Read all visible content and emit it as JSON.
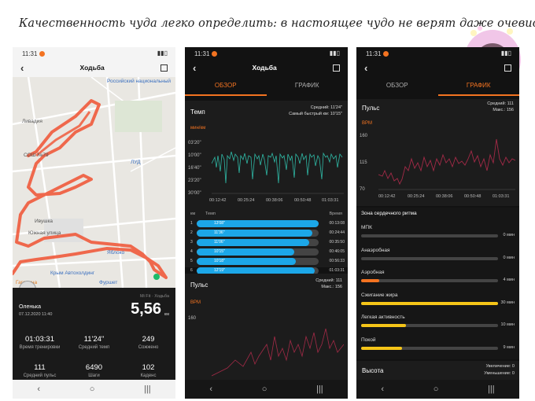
{
  "caption": "Качественность чуда легко определить: в настоящее чудо не верят даже очевидцы.",
  "status_time": "11:31",
  "phone1": {
    "title": "Ходьба",
    "map_labels": [
      "Российский национальный",
      "Ливадия",
      "СОШ №79",
      "ЛУД",
      "Ивушка",
      "Южная улица",
      "Яблоко",
      "Крым Автохолдинг",
      "Фуршет",
      "Гагарина"
    ],
    "mi_fit": "Mi Fit · Ходьба",
    "user": "Оленька",
    "date": "07.12.2020 11:40",
    "distance": "5,56",
    "distance_unit": "км",
    "stats": [
      {
        "value": "01:03:31",
        "label": "Время тренировки"
      },
      {
        "value": "11'24\"",
        "label": "Средний темп"
      },
      {
        "value": "249",
        "label": "Сожжено"
      },
      {
        "value": "111",
        "label": "Средний пульс"
      },
      {
        "value": "6490",
        "label": "Шаги"
      },
      {
        "value": "102",
        "label": "Каденс"
      }
    ]
  },
  "phone2": {
    "title": "Ходьба",
    "tabs": [
      "ОБЗОР",
      "ГРАФИК"
    ],
    "pace_title": "Темп",
    "avg_pace": "Средний: 11'24\"",
    "best_pace": "Самый быстрый км: 10'15\"",
    "pace_unit": "мин/км",
    "pace_yticks": [
      "03'20\"",
      "10'00\"",
      "16'40\"",
      "23'20\"",
      "30'00\""
    ],
    "xticks": [
      "00:12:42",
      "00:25:24",
      "00:38:06",
      "00:50:48",
      "01:03:31"
    ],
    "table_headers": [
      "км",
      "Темп",
      "Время"
    ],
    "rows": [
      {
        "km": "1",
        "pace": "13'08\"",
        "time": "00:13:08",
        "fill": 1.0
      },
      {
        "km": "2",
        "pace": "11'36\"",
        "time": "00:24:44",
        "fill": 0.95
      },
      {
        "km": "3",
        "pace": "11'06\"",
        "time": "00:35:50",
        "fill": 0.92
      },
      {
        "km": "4",
        "pace": "10'15\"",
        "time": "00:46:05",
        "fill": 0.8
      },
      {
        "km": "5",
        "pace": "10'18\"",
        "time": "00:56:33",
        "fill": 0.81
      },
      {
        "km": "6",
        "pace": "12'19\"",
        "time": "01:03:31",
        "fill": 0.97
      }
    ],
    "pulse_title": "Пульс",
    "pulse_avg": "Средний: 111",
    "pulse_max": "Макс.: 156",
    "bpm": "BPM",
    "pulse_ytick": "160"
  },
  "phone3": {
    "tabs": [
      "ОБЗОР",
      "ГРАФИК"
    ],
    "pulse_title": "Пульс",
    "pulse_avg": "Средний: 111",
    "pulse_max": "Макс.: 156",
    "bpm": "BPM",
    "yticks": [
      "160",
      "115",
      "70"
    ],
    "xticks": [
      "00:12:42",
      "00:25:24",
      "00:38:06",
      "00:50:48",
      "01:03:31"
    ],
    "zones_title": "Зона сердечного ритма",
    "zones": [
      {
        "label": "МПК",
        "time": "0 мин",
        "fill": 0.0,
        "color": "#f37321"
      },
      {
        "label": "Анаэробная",
        "time": "0 мин",
        "fill": 0.0,
        "color": "#f37321"
      },
      {
        "label": "Аэробная",
        "time": "4 мин",
        "fill": 0.13,
        "color": "#f37321"
      },
      {
        "label": "Сжигание жира",
        "time": "30 мин",
        "fill": 1.0,
        "color": "#f5c518"
      },
      {
        "label": "Легкая активность",
        "time": "10 мин",
        "fill": 0.33,
        "color": "#f5c518"
      },
      {
        "label": "Покой",
        "time": "9 мин",
        "fill": 0.3,
        "color": "#f5c518"
      }
    ],
    "height_title": "Высота",
    "gain": "Увеличение: 0",
    "loss": "Уменьшение: 0"
  }
}
